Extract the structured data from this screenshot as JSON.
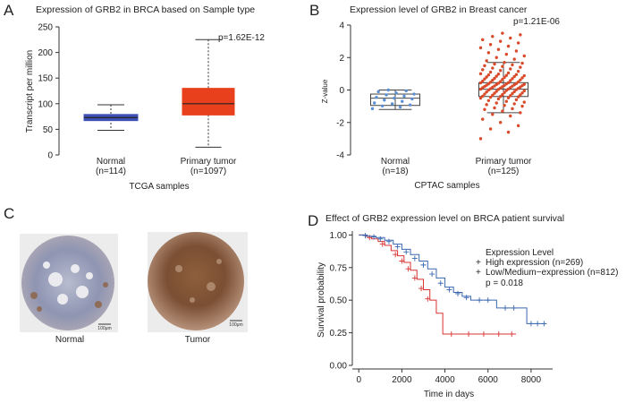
{
  "panel_letters": {
    "a": "A",
    "b": "B",
    "c": "C",
    "d": "D"
  },
  "colors": {
    "normal_box": "#3f51b5",
    "tumor_box": "#e8401c",
    "cptac_point_normal": "#5b8fd6",
    "cptac_point_tumor": "#d94a2a",
    "km_high": "#d93333",
    "km_low": "#3a67b0",
    "legend_title": "#a03030"
  },
  "ihc": {
    "normal_label": "Normal",
    "tumor_label": "Tumor",
    "scale_label": "100μm"
  },
  "chart_data": [
    {
      "panel": "A",
      "type": "box",
      "title": "Expression of GRB2 in BRCA based on Sample type",
      "ylabel": "Transcript per million",
      "xlabel": "TCGA samples",
      "ylim": [
        0,
        250
      ],
      "yticks": [
        0,
        50,
        100,
        150,
        200,
        250
      ],
      "pvalue": "p=1.62E-12",
      "groups": [
        {
          "name": "Normal",
          "n": "(n=114)",
          "min": 48,
          "q1": 67,
          "median": 73,
          "q3": 79,
          "max": 98
        },
        {
          "name": "Primary tumor",
          "n": "(n=1097)",
          "min": 15,
          "q1": 78,
          "median": 100,
          "q3": 130,
          "max": 225
        }
      ]
    },
    {
      "panel": "B",
      "type": "box_scatter",
      "title": "Expression level of GRB2 in Breast cancer",
      "ylabel": "Z-value",
      "xlabel": "CPTAC samples",
      "ylim": [
        -4,
        4
      ],
      "yticks": [
        -4,
        -2,
        0,
        2,
        4
      ],
      "pvalue": "p=1.21E-06",
      "groups": [
        {
          "name": "Normal",
          "n": "(n=18)",
          "min": -1.2,
          "q1": -0.95,
          "median": -0.5,
          "q3": -0.25,
          "max": 0.0,
          "points": [
            -1.15,
            -1.05,
            -0.98,
            -0.92,
            -0.85,
            -0.8,
            -0.7,
            -0.62,
            -0.55,
            -0.5,
            -0.45,
            -0.38,
            -0.3,
            -0.25,
            -0.18,
            -0.1,
            -0.05,
            0.0
          ]
        },
        {
          "name": "Primary tumor",
          "n": "(n=125)",
          "min": -1.4,
          "q1": -0.4,
          "median": 0.05,
          "q3": 0.45,
          "max": 1.7,
          "points": [
            -3.0,
            -2.6,
            -2.4,
            -2.2,
            -2.0,
            -1.8,
            -1.6,
            -1.5,
            -1.4,
            -1.3,
            -1.2,
            -1.15,
            -1.1,
            -1.0,
            -0.95,
            -0.9,
            -0.85,
            -0.8,
            -0.75,
            -0.7,
            -0.65,
            -0.6,
            -0.55,
            -0.5,
            -0.48,
            -0.45,
            -0.42,
            -0.4,
            -0.38,
            -0.35,
            -0.32,
            -0.3,
            -0.28,
            -0.25,
            -0.22,
            -0.2,
            -0.18,
            -0.15,
            -0.12,
            -0.1,
            -0.08,
            -0.05,
            -0.03,
            0.0,
            0.02,
            0.04,
            0.05,
            0.06,
            0.08,
            0.1,
            0.12,
            0.14,
            0.15,
            0.17,
            0.18,
            0.2,
            0.22,
            0.24,
            0.25,
            0.27,
            0.28,
            0.3,
            0.32,
            0.34,
            0.35,
            0.37,
            0.38,
            0.4,
            0.42,
            0.44,
            0.45,
            0.48,
            0.5,
            0.52,
            0.55,
            0.58,
            0.6,
            0.62,
            0.65,
            0.68,
            0.7,
            0.72,
            0.75,
            0.78,
            0.8,
            0.83,
            0.85,
            0.88,
            0.9,
            0.93,
            0.95,
            0.98,
            1.0,
            1.05,
            1.1,
            1.15,
            1.2,
            1.25,
            1.3,
            1.35,
            1.4,
            1.45,
            1.5,
            1.55,
            1.6,
            1.65,
            1.7,
            1.8,
            1.9,
            2.0,
            2.1,
            2.2,
            2.3,
            2.4,
            2.5,
            2.6,
            2.7,
            2.8,
            2.9,
            3.0,
            3.1,
            3.2,
            3.3,
            3.4,
            3.5
          ]
        }
      ]
    },
    {
      "panel": "D",
      "type": "line",
      "subtype": "kaplan-meier",
      "title": "Effect of GRB2 expression level on BRCA patient survival",
      "xlabel": "Time in days",
      "ylabel": "Survival probability",
      "xlim": [
        -300,
        9000
      ],
      "ylim": [
        0,
        1.03
      ],
      "xticks": [
        0,
        2000,
        4000,
        6000,
        8000
      ],
      "yticks": [
        "0.00",
        "0.25",
        "0.50",
        "0.75",
        "1.00"
      ],
      "legend_title": "Expression Level",
      "pvalue": "p = 0.018",
      "series": [
        {
          "name": "High expression (n=269)",
          "colorKey": "km_high",
          "steps": [
            [
              0,
              1.0
            ],
            [
              300,
              0.99
            ],
            [
              600,
              0.97
            ],
            [
              900,
              0.95
            ],
            [
              1200,
              0.92
            ],
            [
              1500,
              0.88
            ],
            [
              1800,
              0.84
            ],
            [
              2100,
              0.79
            ],
            [
              2400,
              0.73
            ],
            [
              2700,
              0.66
            ],
            [
              3000,
              0.58
            ],
            [
              3300,
              0.5
            ],
            [
              3600,
              0.4
            ],
            [
              3900,
              0.24
            ],
            [
              7300,
              0.24
            ]
          ],
          "censors": [
            [
              500,
              0.98
            ],
            [
              1100,
              0.93
            ],
            [
              1700,
              0.85
            ],
            [
              2000,
              0.8
            ],
            [
              2300,
              0.74
            ],
            [
              2600,
              0.67
            ],
            [
              2900,
              0.59
            ],
            [
              3200,
              0.51
            ],
            [
              4300,
              0.24
            ],
            [
              5100,
              0.24
            ],
            [
              5800,
              0.24
            ],
            [
              6500,
              0.24
            ],
            [
              7100,
              0.24
            ]
          ]
        },
        {
          "name": "Low/Medium−expression (n=812)",
          "colorKey": "km_low",
          "steps": [
            [
              0,
              1.0
            ],
            [
              400,
              0.99
            ],
            [
              800,
              0.98
            ],
            [
              1200,
              0.96
            ],
            [
              1600,
              0.93
            ],
            [
              2000,
              0.89
            ],
            [
              2400,
              0.85
            ],
            [
              2800,
              0.8
            ],
            [
              3200,
              0.74
            ],
            [
              3600,
              0.67
            ],
            [
              4000,
              0.6
            ],
            [
              4400,
              0.56
            ],
            [
              4800,
              0.53
            ],
            [
              5200,
              0.5
            ],
            [
              6400,
              0.44
            ],
            [
              7800,
              0.32
            ],
            [
              8700,
              0.32
            ]
          ],
          "censors": [
            [
              300,
              0.995
            ],
            [
              700,
              0.985
            ],
            [
              1000,
              0.97
            ],
            [
              1400,
              0.95
            ],
            [
              1800,
              0.91
            ],
            [
              2200,
              0.87
            ],
            [
              2600,
              0.82
            ],
            [
              3000,
              0.77
            ],
            [
              3400,
              0.7
            ],
            [
              3800,
              0.63
            ],
            [
              4200,
              0.58
            ],
            [
              4600,
              0.55
            ],
            [
              5000,
              0.52
            ],
            [
              5600,
              0.5
            ],
            [
              6000,
              0.5
            ],
            [
              6800,
              0.44
            ],
            [
              7200,
              0.44
            ],
            [
              8000,
              0.32
            ],
            [
              8300,
              0.32
            ],
            [
              8600,
              0.32
            ]
          ]
        }
      ]
    }
  ]
}
